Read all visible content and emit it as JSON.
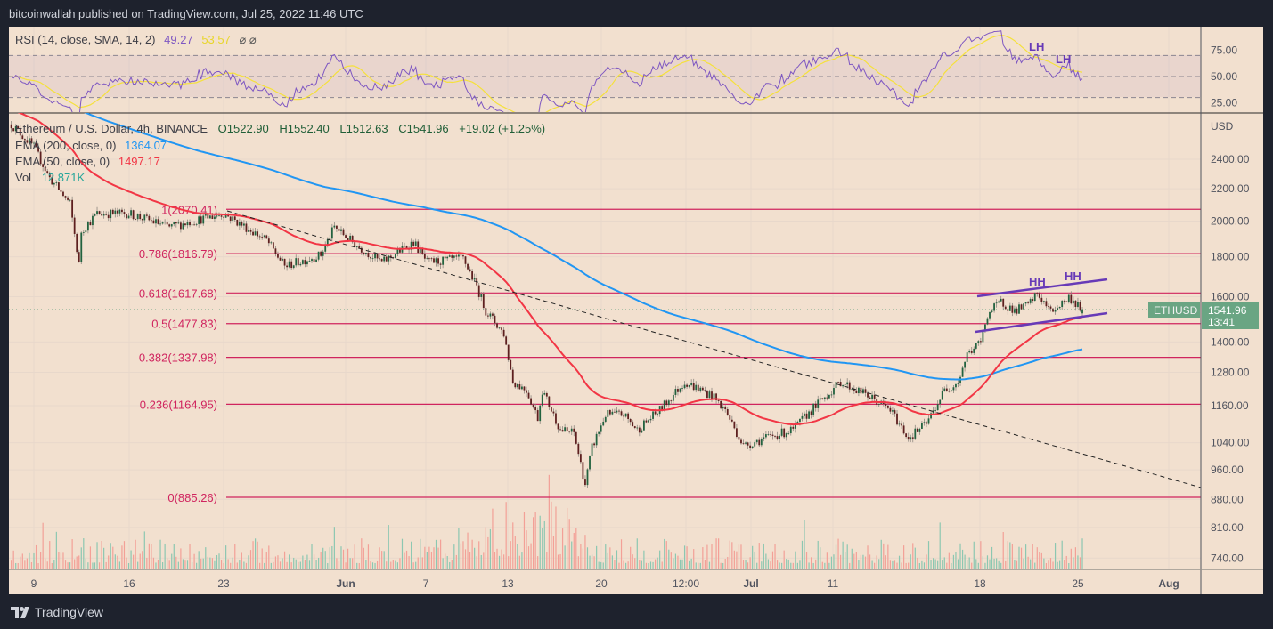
{
  "header": {
    "published": "bitcoinwallah published on TradingView.com, Jul 25, 2022 11:46 UTC"
  },
  "footer": {
    "brand": "TradingView",
    "logo_icon": "tradingview-logo-icon"
  },
  "colors": {
    "background": "#f2e0cf",
    "candle_up": "#22623f",
    "candle_down": "#5d1f1f",
    "ema200": "#2196f3",
    "ema50": "#f23645",
    "rsi": "#7e57c2",
    "rsi_sma": "#f5e13b",
    "fib": "#d0245e",
    "channel": "#673ab7",
    "price_tag": "#6aa583",
    "volume_up": "#8cc7b1",
    "volume_down": "#f3a097"
  },
  "legend": {
    "symbol": "Ethereum / U.S. Dollar, 4h, BINANCE",
    "open": "O1522.90",
    "high": "H1552.40",
    "low": "L1512.63",
    "close": "C1541.96",
    "change": "+19.02 (+1.25%)",
    "ema200_label": "EMA (200, close, 0)",
    "ema200_value": "1364.07",
    "ema50_label": "EMA (50, close, 0)",
    "ema50_value": "1497.17",
    "vol_label": "Vol",
    "vol_value": "12.871K",
    "rsi_label": "RSI (14, close, SMA, 14, 2)",
    "rsi_value": "49.27",
    "rsi_sma_value": "53.57",
    "rsi_icons": "⌀ ⌀"
  },
  "price_tag": {
    "symbol": "ETHUSD",
    "price": "1541.96",
    "countdown": "13:41"
  },
  "chart_data": {
    "type": "candlestick",
    "yscale": "log",
    "currency": "USD",
    "grid": true,
    "y_ticks": [
      "2400.00",
      "2200.00",
      "2000.00",
      "1800.00",
      "1600.00",
      "1400.00",
      "1280.00",
      "1160.00",
      "1040.00",
      "960.00",
      "880.00",
      "810.00",
      "740.00"
    ],
    "x_ticks": [
      "9",
      "16",
      "23",
      "Jun",
      "7",
      "13",
      "20",
      "12:00",
      "Jul",
      "11",
      "18",
      "25",
      "Aug"
    ],
    "rsi_ticks": [
      "75.00",
      "50.00",
      "25.00"
    ],
    "rsi_bands": [
      70,
      50,
      30
    ],
    "close_path": [
      {
        "date": "2022-05-07 08:00",
        "price": 2660
      },
      {
        "date": "2022-05-09 00:00",
        "price": 2490
      },
      {
        "date": "2022-05-10 04:00",
        "price": 2270
      },
      {
        "date": "2022-05-11 16:00",
        "price": 2105
      },
      {
        "date": "2022-05-12 08:00",
        "price": 1760
      },
      {
        "date": "2022-05-12 12:00",
        "price": 1940
      },
      {
        "date": "2022-05-13 16:00",
        "price": 2045
      },
      {
        "date": "2022-05-16 00:00",
        "price": 2045
      },
      {
        "date": "2022-05-19 00:00",
        "price": 1965
      },
      {
        "date": "2022-05-23 00:00",
        "price": 2045
      },
      {
        "date": "2022-05-26 04:00",
        "price": 1890
      },
      {
        "date": "2022-05-27 12:00",
        "price": 1750
      },
      {
        "date": "2022-05-30 04:00",
        "price": 1810
      },
      {
        "date": "2022-05-31 04:00",
        "price": 1965
      },
      {
        "date": "2022-06-01 20:00",
        "price": 1860
      },
      {
        "date": "2022-06-03 16:00",
        "price": 1770
      },
      {
        "date": "2022-06-06 00:00",
        "price": 1880
      },
      {
        "date": "2022-06-07 00:00",
        "price": 1770
      },
      {
        "date": "2022-06-09 16:00",
        "price": 1790
      },
      {
        "date": "2022-06-10 16:00",
        "price": 1650
      },
      {
        "date": "2022-06-11 08:00",
        "price": 1535
      },
      {
        "date": "2022-06-12 16:00",
        "price": 1435
      },
      {
        "date": "2022-06-13 08:00",
        "price": 1245
      },
      {
        "date": "2022-06-14 08:00",
        "price": 1215
      },
      {
        "date": "2022-06-15 04:00",
        "price": 1120
      },
      {
        "date": "2022-06-15 12:00",
        "price": 1215
      },
      {
        "date": "2022-06-16 20:00",
        "price": 1080
      },
      {
        "date": "2022-06-17 20:00",
        "price": 1070
      },
      {
        "date": "2022-06-18 16:00",
        "price": 920
      },
      {
        "date": "2022-06-19 04:00",
        "price": 1025
      },
      {
        "date": "2022-06-20 04:00",
        "price": 1130
      },
      {
        "date": "2022-06-21 12:00",
        "price": 1130
      },
      {
        "date": "2022-06-22 12:00",
        "price": 1080
      },
      {
        "date": "2022-06-24 04:00",
        "price": 1145
      },
      {
        "date": "2022-06-26 00:00",
        "price": 1245
      },
      {
        "date": "2022-06-28 00:00",
        "price": 1195
      },
      {
        "date": "2022-06-29 00:00",
        "price": 1145
      },
      {
        "date": "2022-06-30 08:00",
        "price": 1030
      },
      {
        "date": "2022-07-02 00:00",
        "price": 1055
      },
      {
        "date": "2022-07-04 00:00",
        "price": 1080
      },
      {
        "date": "2022-07-05 08:00",
        "price": 1145
      },
      {
        "date": "2022-07-07 12:00",
        "price": 1245
      },
      {
        "date": "2022-07-09 12:00",
        "price": 1195
      },
      {
        "date": "2022-07-11 04:00",
        "price": 1145
      },
      {
        "date": "2022-07-12 12:00",
        "price": 1055
      },
      {
        "date": "2022-07-13 20:00",
        "price": 1100
      },
      {
        "date": "2022-07-15 04:00",
        "price": 1215
      },
      {
        "date": "2022-07-16 04:00",
        "price": 1245
      },
      {
        "date": "2022-07-16 20:00",
        "price": 1350
      },
      {
        "date": "2022-07-17 20:00",
        "price": 1400
      },
      {
        "date": "2022-07-18 08:00",
        "price": 1520
      },
      {
        "date": "2022-07-19 08:00",
        "price": 1575
      },
      {
        "date": "2022-07-20 08:00",
        "price": 1535
      },
      {
        "date": "2022-07-21 08:00",
        "price": 1560
      },
      {
        "date": "2022-07-22 00:00",
        "price": 1615
      },
      {
        "date": "2022-07-23 00:00",
        "price": 1530
      },
      {
        "date": "2022-07-24 08:00",
        "price": 1595
      },
      {
        "date": "2022-07-25 08:00",
        "price": 1541.96
      }
    ],
    "last_candle": {
      "open": 1522.9,
      "high": 1552.4,
      "low": 1512.63,
      "close": 1541.96
    },
    "fib_levels": [
      {
        "label": "1(2070.41)",
        "price": 2070.41
      },
      {
        "label": "0.786(1816.79)",
        "price": 1816.79
      },
      {
        "label": "0.618(1617.68)",
        "price": 1617.68
      },
      {
        "label": "0.5(1477.83)",
        "price": 1477.83
      },
      {
        "label": "0.382(1337.98)",
        "price": 1337.98
      },
      {
        "label": "0.236(1164.95)",
        "price": 1164.95
      },
      {
        "label": "0(885.26)",
        "price": 885.26
      }
    ],
    "annotations": [
      {
        "text": "HH",
        "pane": "price"
      },
      {
        "text": "HH",
        "pane": "price"
      },
      {
        "text": "LH",
        "pane": "rsi"
      },
      {
        "text": "LH",
        "pane": "rsi"
      }
    ]
  }
}
